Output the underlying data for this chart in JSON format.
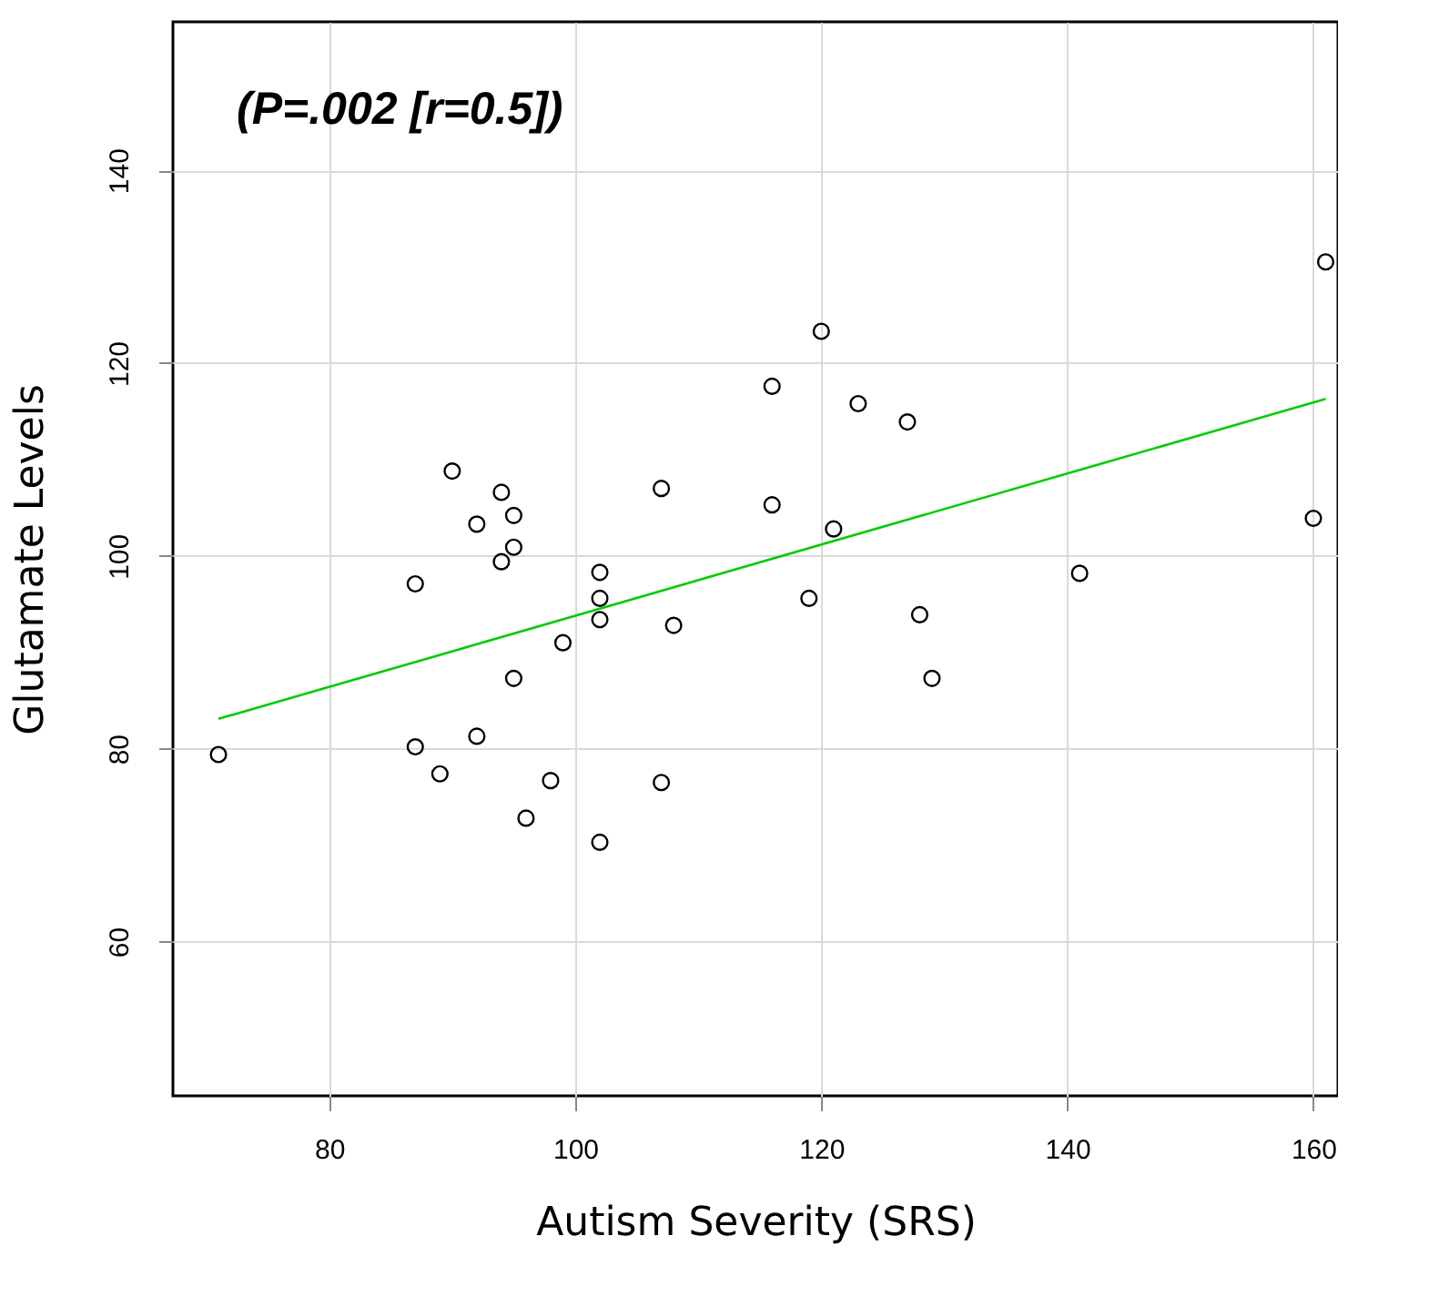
{
  "chart_data": {
    "type": "scatter",
    "xlabel": "Autism Severity (SRS)",
    "ylabel": "Glutamate Levels",
    "annotations": [
      "(P=.002 [r=0.5])"
    ],
    "xlim": [
      67.3,
      162
    ],
    "xticks": [
      80,
      100,
      120,
      140,
      160
    ],
    "ylim": [
      44,
      155.4
    ],
    "yticks": [
      60,
      80,
      100,
      120,
      140
    ],
    "grid": true,
    "series": [
      {
        "marker": "circle",
        "color": "#000000",
        "x": [
          71,
          87,
          90,
          92,
          94,
          95,
          94,
          95,
          107,
          102,
          102,
          102,
          108,
          99,
          95,
          87,
          92,
          89,
          98,
          96,
          107,
          102,
          120,
          116,
          123,
          127,
          116,
          121,
          119,
          128,
          129,
          141,
          161,
          160
        ],
        "values": [
          79.4,
          97.1,
          108.8,
          103.3,
          106.6,
          104.2,
          99.4,
          100.9,
          107.0,
          98.3,
          95.6,
          93.4,
          92.8,
          91.0,
          87.3,
          80.2,
          81.3,
          77.4,
          76.7,
          72.8,
          76.5,
          70.3,
          123.3,
          117.6,
          115.8,
          113.9,
          105.3,
          102.8,
          95.6,
          93.9,
          87.3,
          98.2,
          130.5,
          103.9
        ]
      },
      {
        "type": "line",
        "color": "#00cc00",
        "x": [
          71,
          161
        ],
        "values": [
          83.1,
          116.3
        ]
      }
    ]
  }
}
